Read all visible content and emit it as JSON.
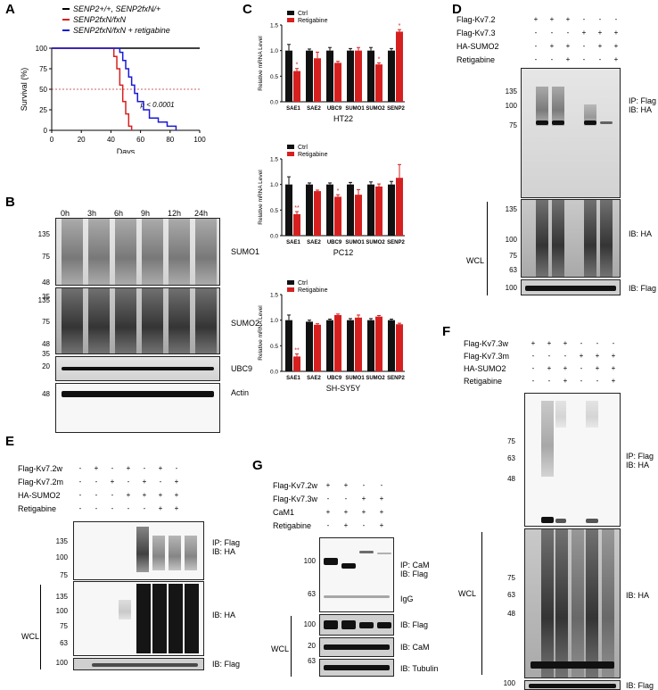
{
  "panels": {
    "A": {
      "label": "A",
      "legend": [
        "SENP2+/+, SENP2fxN/+",
        "SENP2fxN/fxN",
        "SENP2fxN/fxN + retigabine"
      ],
      "pvalue": "p < 0.0001",
      "ylabel": "Survival (%)",
      "xlabel": "Days"
    },
    "B": {
      "label": "B",
      "timepoints": [
        "0h",
        "3h",
        "6h",
        "9h",
        "12h",
        "24h"
      ],
      "blots": [
        "SUMO1",
        "SUMO2",
        "UBC9",
        "Actin"
      ],
      "markers_sumo1": [
        "135",
        "75",
        "48",
        "35"
      ],
      "markers_sumo2": [
        "135",
        "75",
        "48",
        "35"
      ],
      "markers_ubc9": [
        "20"
      ],
      "markers_actin": [
        "48"
      ]
    },
    "C": {
      "label": "C",
      "legend": [
        "Ctrl",
        "Retigabine"
      ],
      "ylabel": "Relative mRNA Level",
      "cell_lines": [
        "HT22",
        "PC12",
        "SH-SY5Y"
      ]
    },
    "D": {
      "label": "D",
      "rows": [
        {
          "name": "Flag-Kv7.2",
          "syms": [
            "+",
            "+",
            "+",
            "-",
            "-",
            "-"
          ]
        },
        {
          "name": "Flag-Kv7.3",
          "syms": [
            "-",
            "-",
            "-",
            "+",
            "+",
            "+"
          ]
        },
        {
          "name": "HA-SUMO2",
          "syms": [
            "-",
            "+",
            "+",
            "-",
            "+",
            "+"
          ]
        },
        {
          "name": "Retigabine",
          "syms": [
            "-",
            "-",
            "+",
            "-",
            "-",
            "+"
          ]
        }
      ],
      "ip_markers": [
        "135",
        "100",
        "75"
      ],
      "wcl_markers": [
        "135",
        "100",
        "75",
        "63"
      ],
      "flag_markers": [
        "100"
      ],
      "ip_label": "IP: Flag",
      "ib_ha": "IB: HA",
      "ib_flag": "IB: Flag",
      "wcl": "WCL"
    },
    "E": {
      "label": "E",
      "rows": [
        {
          "name": "Flag-Kv7.2w",
          "syms": [
            "-",
            "+",
            "-",
            "+",
            "-",
            "+",
            "-"
          ]
        },
        {
          "name": "Flag-Kv7.2m",
          "syms": [
            "-",
            "-",
            "+",
            "-",
            "+",
            "-",
            "+"
          ]
        },
        {
          "name": "HA-SUMO2",
          "syms": [
            "-",
            "-",
            "-",
            "+",
            "+",
            "+",
            "+"
          ]
        },
        {
          "name": "Retigabine",
          "syms": [
            "-",
            "-",
            "-",
            "-",
            "-",
            "+",
            "+"
          ]
        }
      ],
      "ip_markers": [
        "135",
        "100",
        "75"
      ],
      "wcl_markers": [
        "135",
        "100",
        "75",
        "63"
      ],
      "flag_markers": [
        "100"
      ],
      "ip_label": "IP: Flag",
      "ib_ha": "IB: HA",
      "ib_flag": "IB: Flag",
      "wcl": "WCL"
    },
    "F": {
      "label": "F",
      "rows": [
        {
          "name": "Flag-Kv7.3w",
          "syms": [
            "+",
            "+",
            "+",
            "-",
            "-",
            "-"
          ]
        },
        {
          "name": "Flag-Kv7.3m",
          "syms": [
            "-",
            "-",
            "-",
            "+",
            "+",
            "+"
          ]
        },
        {
          "name": "HA-SUMO2",
          "syms": [
            "-",
            "+",
            "+",
            "-",
            "+",
            "+"
          ]
        },
        {
          "name": "Retigabine",
          "syms": [
            "-",
            "-",
            "+",
            "-",
            "-",
            "+"
          ]
        }
      ],
      "ip_markers": [
        "75",
        "63",
        "48"
      ],
      "wcl_markers": [
        "75",
        "63",
        "48"
      ],
      "flag_markers": [
        "100"
      ],
      "ip_label": "IP: Flag",
      "ib_ha": "IB: HA",
      "ib_flag": "IB: Flag",
      "wcl": "WCL"
    },
    "G": {
      "label": "G",
      "rows": [
        {
          "name": "Flag-Kv7.2w",
          "syms": [
            "+",
            "+",
            "-",
            "-"
          ]
        },
        {
          "name": "Flag-Kv7.3w",
          "syms": [
            "-",
            "-",
            "+",
            "+"
          ]
        },
        {
          "name": "CaM1",
          "syms": [
            "+",
            "+",
            "+",
            "+"
          ]
        },
        {
          "name": "Retigabine",
          "syms": [
            "-",
            "+",
            "-",
            "+"
          ]
        }
      ],
      "ip_markers": [
        "100",
        "63"
      ],
      "ip_label": "IP: CaM",
      "ib_flag": "IB: Flag",
      "igg": "IgG",
      "wcl_markers": [
        "100",
        "20",
        "63"
      ],
      "wcl_ibs": [
        "IB: Flag",
        "IB: CaM",
        "IB: Tubulin"
      ],
      "wcl": "WCL"
    }
  },
  "chart_data": [
    {
      "type": "line",
      "panel": "A",
      "xlabel": "Days",
      "ylabel": "Survival (%)",
      "xlim": [
        0,
        100
      ],
      "ylim": [
        0,
        100
      ],
      "xticks": [
        0,
        20,
        40,
        60,
        80,
        100
      ],
      "yticks": [
        0,
        25,
        50,
        75,
        100
      ],
      "series": [
        {
          "name": "SENP2+/+, SENP2fxN/+",
          "color": "#000000",
          "x": [
            0,
            100
          ],
          "y": [
            100,
            100
          ]
        },
        {
          "name": "SENP2fxN/fxN",
          "color": "#d62020",
          "x": [
            0,
            40,
            42,
            44,
            46,
            48,
            50,
            52,
            54
          ],
          "y": [
            100,
            100,
            90,
            75,
            55,
            35,
            20,
            5,
            0
          ]
        },
        {
          "name": "SENP2fxN/fxN + retigabine",
          "color": "#1a1ad6",
          "x": [
            0,
            44,
            46,
            48,
            50,
            52,
            54,
            56,
            58,
            62,
            66,
            72,
            78,
            84
          ],
          "y": [
            100,
            100,
            95,
            85,
            75,
            65,
            55,
            45,
            35,
            25,
            15,
            10,
            5,
            0
          ]
        }
      ],
      "annotation": "p < 0.0001",
      "reference_line": 50
    },
    {
      "type": "bar",
      "panel": "C",
      "title": "HT22",
      "categories": [
        "SAE1",
        "SAE2",
        "UBC9",
        "SUMO1",
        "SUMO2",
        "SENP2"
      ],
      "ylabel": "Relative mRNA Level",
      "ylim": [
        0,
        1.5
      ],
      "yticks": [
        0.0,
        0.5,
        1.0,
        1.5
      ],
      "series": [
        {
          "name": "Ctrl",
          "color": "#111111",
          "values": [
            1.0,
            1.0,
            1.0,
            1.0,
            1.0,
            1.0
          ],
          "errors": [
            0.12,
            0.03,
            0.06,
            0.04,
            0.06,
            0.04
          ]
        },
        {
          "name": "Retigabine",
          "color": "#d62020",
          "values": [
            0.6,
            0.85,
            0.76,
            1.0,
            0.73,
            1.37
          ],
          "errors": [
            0.05,
            0.12,
            0.03,
            0.06,
            0.03,
            0.04
          ]
        }
      ],
      "significance": [
        "*",
        "",
        "",
        "",
        "*",
        "*"
      ]
    },
    {
      "type": "bar",
      "panel": "C",
      "title": "PC12",
      "categories": [
        "SAE1",
        "SAE2",
        "UBC9",
        "SUMO1",
        "SUMO2",
        "SENP2"
      ],
      "ylabel": "Relative mRNA Level",
      "ylim": [
        0,
        1.5
      ],
      "yticks": [
        0.0,
        0.5,
        1.0,
        1.5
      ],
      "series": [
        {
          "name": "Ctrl",
          "color": "#111111",
          "values": [
            1.0,
            1.0,
            1.0,
            1.0,
            1.0,
            1.0
          ],
          "errors": [
            0.15,
            0.03,
            0.03,
            0.04,
            0.05,
            0.06
          ]
        },
        {
          "name": "Retigabine",
          "color": "#d62020",
          "values": [
            0.42,
            0.87,
            0.76,
            0.8,
            0.96,
            1.13
          ],
          "errors": [
            0.05,
            0.02,
            0.04,
            0.1,
            0.05,
            0.26
          ]
        }
      ],
      "significance": [
        "**",
        "",
        "*",
        "",
        "",
        ""
      ]
    },
    {
      "type": "bar",
      "panel": "C",
      "title": "SH-SY5Y",
      "categories": [
        "SAE1",
        "SAE2",
        "UBC9",
        "SUMO1",
        "SUMO2",
        "SENP2"
      ],
      "ylabel": "Relative mRNA Level",
      "ylim": [
        0,
        1.5
      ],
      "yticks": [
        0.0,
        0.5,
        1.0,
        1.5
      ],
      "series": [
        {
          "name": "Ctrl",
          "color": "#111111",
          "values": [
            1.0,
            0.97,
            1.0,
            1.0,
            1.0,
            1.0
          ],
          "errors": [
            0.1,
            0.03,
            0.02,
            0.03,
            0.03,
            0.02
          ]
        },
        {
          "name": "Retigabine",
          "color": "#d62020",
          "values": [
            0.29,
            0.91,
            1.1,
            1.05,
            1.07,
            0.92
          ],
          "errors": [
            0.05,
            0.02,
            0.02,
            0.05,
            0.02,
            0.02
          ]
        }
      ],
      "significance": [
        "**",
        "",
        "",
        "",
        "",
        ""
      ]
    }
  ]
}
